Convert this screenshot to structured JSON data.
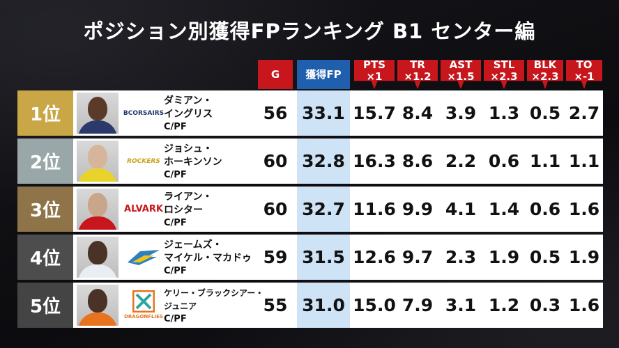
{
  "title": "ポジション別獲得FPランキング B1 センター編",
  "headers": {
    "g": "G",
    "fp": "獲得FP",
    "pts": [
      "PTS",
      "×1"
    ],
    "tr": [
      "TR",
      "×1.2"
    ],
    "ast": [
      "AST",
      "×1.5"
    ],
    "stl": [
      "STL",
      "×2.3"
    ],
    "blk": [
      "BLK",
      "×2.3"
    ],
    "to": [
      "TO",
      "×-1"
    ]
  },
  "colors": {
    "header_red": "#c8161d",
    "header_blue": "#1f5fae",
    "fp_column": "#cfe3f7",
    "rank1": "#c9a646",
    "rank2": "#9aa7a9",
    "rank3": "#8e7448",
    "rank4": "#4d4d4d",
    "rank5": "#444444"
  },
  "players": [
    {
      "rank": "1位",
      "name": [
        "ダミアン・",
        "イングリス"
      ],
      "pos": "C/PF",
      "team": "Corsairs",
      "logo_text": "BCORSAIRS",
      "g": "56",
      "fp": "33.1",
      "pts": "15.7",
      "tr": "8.4",
      "ast": "3.9",
      "stl": "1.3",
      "blk": "0.5",
      "to": "2.7"
    },
    {
      "rank": "2位",
      "name": [
        "ジョシュ・",
        "ホーキンソン"
      ],
      "pos": "C/PF",
      "team": "Rockers",
      "logo_text": "ROCKERS",
      "g": "60",
      "fp": "32.8",
      "pts": "16.3",
      "tr": "8.6",
      "ast": "2.2",
      "stl": "0.6",
      "blk": "1.1",
      "to": "1.1"
    },
    {
      "rank": "3位",
      "name": [
        "ライアン・",
        "ロシター"
      ],
      "pos": "C/PF",
      "team": "Alvark",
      "logo_text": "ALVARK",
      "g": "60",
      "fp": "32.7",
      "pts": "11.6",
      "tr": "9.9",
      "ast": "4.1",
      "stl": "1.4",
      "blk": "0.6",
      "to": "1.6"
    },
    {
      "rank": "4位",
      "name": [
        "ジェームズ・",
        "マイケル・マカドゥ"
      ],
      "pos": "C/PF",
      "team": "Flyers",
      "logo_text": "",
      "g": "59",
      "fp": "31.5",
      "pts": "12.6",
      "tr": "9.7",
      "ast": "2.3",
      "stl": "1.9",
      "blk": "0.5",
      "to": "1.9"
    },
    {
      "rank": "5位",
      "name": [
        "ケリー・ブラックシアー・",
        "ジュニア"
      ],
      "pos": "C/PF",
      "team": "Dragonflies",
      "logo_text": "DRAGONFLIES",
      "g": "55",
      "fp": "31.0",
      "pts": "15.0",
      "tr": "7.9",
      "ast": "3.1",
      "stl": "1.2",
      "blk": "0.3",
      "to": "1.6"
    }
  ]
}
